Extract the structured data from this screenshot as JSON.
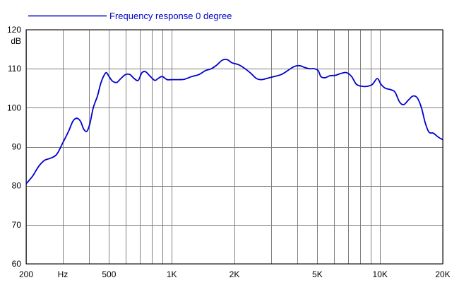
{
  "colors": {
    "series": "#0000cc",
    "grid": "#808080",
    "background": "#ffffff",
    "axis": "#000000"
  },
  "chart_data": {
    "type": "line",
    "title": "",
    "legend": "top-left",
    "grid": true,
    "x_scale": "log",
    "xlim": [
      200,
      20000
    ],
    "ylim": [
      60,
      120
    ],
    "xlabel": "Hz",
    "ylabel": "dB",
    "y_ticks": [
      {
        "value": 120,
        "label": "120"
      },
      {
        "value": 110,
        "label": "110"
      },
      {
        "value": 100,
        "label": "100"
      },
      {
        "value": 90,
        "label": "90"
      },
      {
        "value": 80,
        "label": "80"
      },
      {
        "value": 70,
        "label": "70"
      },
      {
        "value": 60,
        "label": "60"
      }
    ],
    "x_ticks": [
      {
        "value": 200,
        "label": "200"
      },
      {
        "value": 500,
        "label": "500"
      },
      {
        "value": 1000,
        "label": "1K"
      },
      {
        "value": 2000,
        "label": "2K"
      },
      {
        "value": 5000,
        "label": "5K"
      },
      {
        "value": 10000,
        "label": "10K"
      },
      {
        "value": 20000,
        "label": "20K"
      }
    ],
    "x_gridlines": [
      200,
      300,
      400,
      500,
      600,
      700,
      800,
      900,
      1000,
      2000,
      3000,
      4000,
      5000,
      6000,
      7000,
      8000,
      9000,
      10000,
      20000
    ],
    "series": [
      {
        "name": "Frequency response 0 degree",
        "color": "#0000cc",
        "points": [
          [
            200,
            80.5
          ],
          [
            215,
            82.5
          ],
          [
            230,
            85.0
          ],
          [
            245,
            86.5
          ],
          [
            260,
            87.0
          ],
          [
            280,
            88.0
          ],
          [
            300,
            91.0
          ],
          [
            320,
            94.0
          ],
          [
            335,
            96.5
          ],
          [
            350,
            97.3
          ],
          [
            365,
            96.5
          ],
          [
            378,
            94.5
          ],
          [
            392,
            94.0
          ],
          [
            405,
            96.0
          ],
          [
            420,
            100.0
          ],
          [
            440,
            103.0
          ],
          [
            455,
            106.0
          ],
          [
            470,
            108.0
          ],
          [
            485,
            109.0
          ],
          [
            500,
            108.0
          ],
          [
            520,
            106.8
          ],
          [
            545,
            106.5
          ],
          [
            570,
            107.5
          ],
          [
            600,
            108.5
          ],
          [
            630,
            108.5
          ],
          [
            660,
            107.5
          ],
          [
            690,
            107.0
          ],
          [
            720,
            109.0
          ],
          [
            750,
            109.2
          ],
          [
            790,
            108.0
          ],
          [
            830,
            107.0
          ],
          [
            860,
            107.5
          ],
          [
            900,
            108.0
          ],
          [
            950,
            107.2
          ],
          [
            1000,
            107.2
          ],
          [
            1080,
            107.2
          ],
          [
            1150,
            107.3
          ],
          [
            1250,
            108.0
          ],
          [
            1350,
            108.5
          ],
          [
            1450,
            109.5
          ],
          [
            1550,
            110.0
          ],
          [
            1650,
            111.0
          ],
          [
            1750,
            112.2
          ],
          [
            1850,
            112.3
          ],
          [
            1950,
            111.5
          ],
          [
            2100,
            111.0
          ],
          [
            2250,
            110.0
          ],
          [
            2400,
            108.8
          ],
          [
            2550,
            107.5
          ],
          [
            2700,
            107.2
          ],
          [
            2900,
            107.6
          ],
          [
            3100,
            108.0
          ],
          [
            3350,
            108.5
          ],
          [
            3600,
            109.5
          ],
          [
            3850,
            110.5
          ],
          [
            4100,
            110.8
          ],
          [
            4350,
            110.3
          ],
          [
            4600,
            110.0
          ],
          [
            4850,
            110.0
          ],
          [
            5050,
            109.5
          ],
          [
            5200,
            108.0
          ],
          [
            5450,
            107.7
          ],
          [
            5750,
            108.2
          ],
          [
            6100,
            108.3
          ],
          [
            6500,
            108.8
          ],
          [
            6900,
            109.0
          ],
          [
            7300,
            108.0
          ],
          [
            7700,
            106.0
          ],
          [
            8200,
            105.5
          ],
          [
            8700,
            105.5
          ],
          [
            9200,
            106.0
          ],
          [
            9700,
            107.5
          ],
          [
            10100,
            106.0
          ],
          [
            10600,
            105.0
          ],
          [
            11300,
            104.6
          ],
          [
            11800,
            104.0
          ],
          [
            12400,
            101.5
          ],
          [
            13000,
            100.8
          ],
          [
            13700,
            102.0
          ],
          [
            14400,
            103.0
          ],
          [
            15100,
            102.5
          ],
          [
            15800,
            100.0
          ],
          [
            16500,
            96.0
          ],
          [
            17200,
            93.7
          ],
          [
            18000,
            93.5
          ],
          [
            19000,
            92.5
          ],
          [
            20000,
            91.8
          ]
        ]
      }
    ]
  }
}
